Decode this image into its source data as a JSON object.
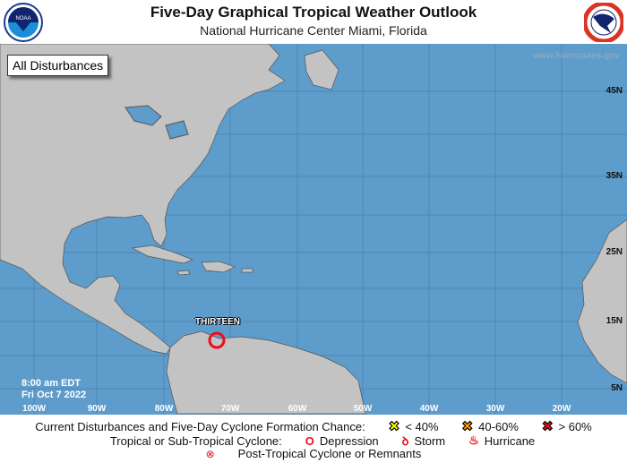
{
  "header": {
    "title": "Five-Day Graphical Tropical Weather Outlook",
    "subtitle": "National Hurricane Center  Miami, Florida",
    "left_logo": "NOAA",
    "right_logo": "NATIONAL WEATHER SERVICE"
  },
  "map": {
    "view_label": "All Disturbances",
    "website": "www.hurricanes.gov",
    "ocean_color": "#5e9ccb",
    "land_color": "#c3c3c3",
    "lat_labels": [
      "45N",
      "35N",
      "25N",
      "15N",
      "5N"
    ],
    "lon_labels": [
      "100W",
      "90W",
      "80W",
      "70W",
      "60W",
      "50W",
      "40W",
      "30W",
      "20W"
    ],
    "timestamp": {
      "time": "8:00 am EDT",
      "date": "Fri Oct 7 2022"
    },
    "systems": [
      {
        "name": "THIRTEEN",
        "type": "Depression",
        "symbol": "red-open-circle",
        "color": "#e8101a"
      }
    ]
  },
  "legend": {
    "formation_label": "Current Disturbances and Five-Day Cyclone Formation Chance:",
    "formation": [
      {
        "label": "< 40%",
        "color": "#ffff00"
      },
      {
        "label": "40-60%",
        "color": "#ff9900"
      },
      {
        "label": "> 60%",
        "color": "#e8101a"
      }
    ],
    "cyclone_label": "Tropical or Sub-Tropical Cyclone:",
    "cyclone": [
      {
        "label": "Depression"
      },
      {
        "label": "Storm"
      },
      {
        "label": "Hurricane"
      }
    ],
    "post_tropical": "Post-Tropical Cyclone or Remnants"
  }
}
